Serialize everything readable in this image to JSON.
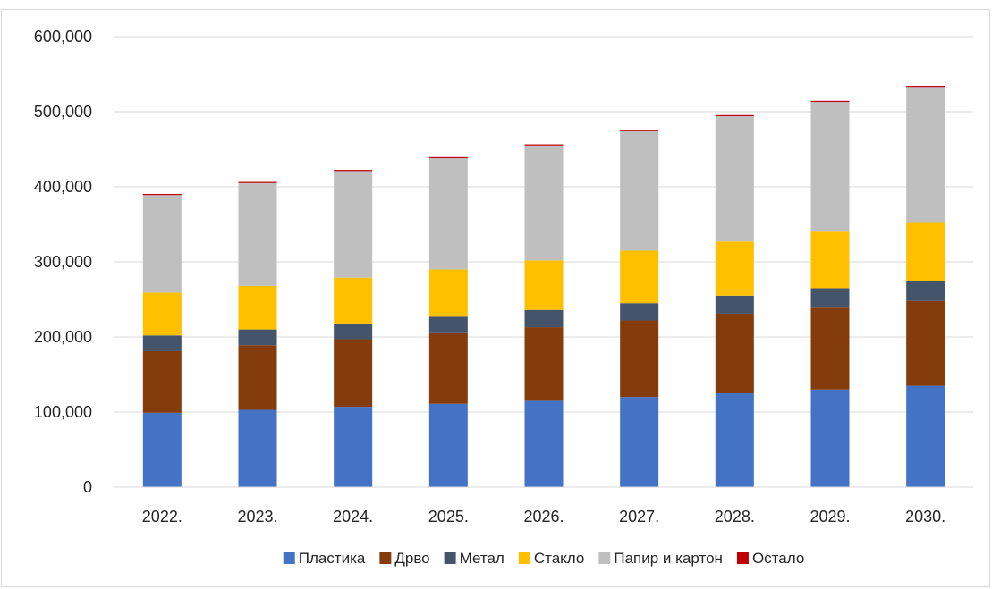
{
  "chart_data": {
    "type": "bar",
    "stacked": true,
    "categories": [
      "2022.",
      "2023.",
      "2024.",
      "2025.",
      "2026.",
      "2027.",
      "2028.",
      "2029.",
      "2030."
    ],
    "series": [
      {
        "name": "Пластика",
        "color": "#4472c4",
        "values": [
          99000,
          103000,
          107000,
          111000,
          115000,
          120000,
          125000,
          130000,
          135000
        ]
      },
      {
        "name": "Дрво",
        "color": "#843c0c",
        "values": [
          82000,
          86000,
          90000,
          94000,
          98000,
          102000,
          106000,
          109000,
          113000
        ]
      },
      {
        "name": "Метал",
        "color": "#44546a",
        "values": [
          21000,
          21000,
          21000,
          22000,
          23000,
          23000,
          24000,
          26000,
          27000
        ]
      },
      {
        "name": "Стакло",
        "color": "#ffc000",
        "values": [
          57000,
          58000,
          61000,
          63000,
          66000,
          70000,
          72000,
          75000,
          78000
        ]
      },
      {
        "name": "Папир и картон",
        "color": "#bfbfbf",
        "values": [
          130000,
          137000,
          142000,
          148000,
          153000,
          159000,
          167000,
          173000,
          180000
        ]
      },
      {
        "name": "Остало",
        "color": "#c00000",
        "values": [
          1500,
          1500,
          1500,
          1500,
          1500,
          1500,
          1500,
          1500,
          1500
        ]
      }
    ],
    "ylim": [
      0,
      600000
    ],
    "yticks": [
      "0",
      "100,000",
      "200,000",
      "300,000",
      "400,000",
      "500,000",
      "600,000"
    ],
    "grid": true,
    "legend_position": "bottom",
    "title": "",
    "xlabel": "",
    "ylabel": ""
  }
}
